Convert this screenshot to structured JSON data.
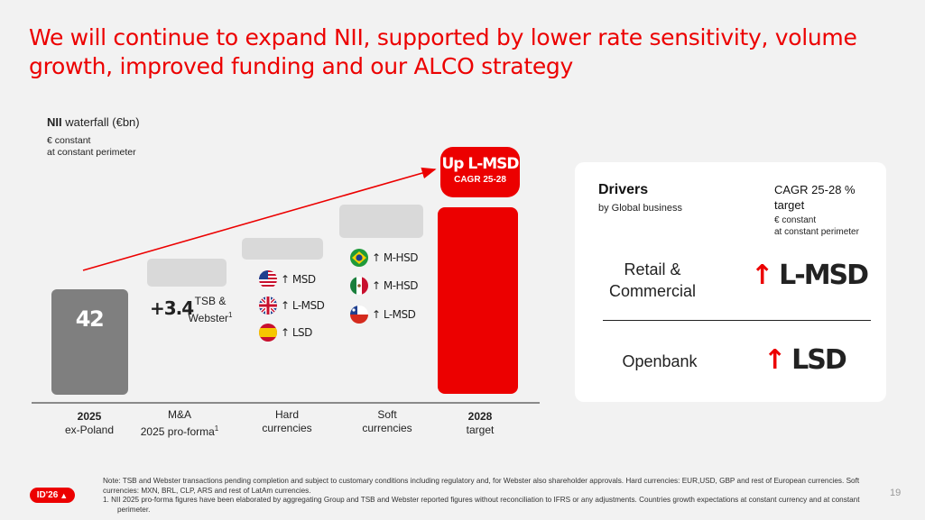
{
  "slide": {
    "title": "We will continue to expand NII, supported by lower rate sensitivity, volume growth, improved funding and our ALCO strategy",
    "page_number": "19"
  },
  "chart_data": {
    "type": "waterfall",
    "title_bold": "NII",
    "title_rest": " waterfall (€bn)",
    "subtitle_line1": "€ constant",
    "subtitle_line2": "at constant perimeter",
    "categories": [
      {
        "line1": "2025",
        "line2": "ex-Poland",
        "bold": true,
        "sup": ""
      },
      {
        "line1": "M&A",
        "line2": "2025 pro-forma",
        "bold": false,
        "sup": "1"
      },
      {
        "line1": "Hard",
        "line2": "currencies",
        "bold": false,
        "sup": ""
      },
      {
        "line1": "Soft",
        "line2": "currencies",
        "bold": false,
        "sup": ""
      },
      {
        "line1": "2028",
        "line2": "target",
        "bold": true,
        "sup": ""
      }
    ],
    "values": [
      42,
      3.4,
      null,
      null,
      null
    ],
    "start_label": "42",
    "ma_value_label": "+3.4",
    "ma_note_line1": "TSB &",
    "ma_note_line2": "Webster",
    "ma_note_sup": "1",
    "hard_currencies": [
      {
        "flag": "usa-flag",
        "label": "↑ MSD"
      },
      {
        "flag": "uk-flag",
        "label": "↑ L-MSD"
      },
      {
        "flag": "spain-flag",
        "label": "↑ LSD"
      }
    ],
    "soft_currencies": [
      {
        "flag": "brazil-flag",
        "label": "↑ M-HSD"
      },
      {
        "flag": "mexico-flag",
        "label": "↑ M-HSD"
      },
      {
        "flag": "chile-flag",
        "label": "↑ L-MSD"
      }
    ],
    "target_badge_main": "Up L-MSD",
    "target_badge_sub": "CAGR 25-28",
    "colors": {
      "start_bar": "#7f7f7f",
      "target_bar": "#ec0000",
      "placeholder": "#d9d9d9",
      "trend_arrow": "#ec0000"
    }
  },
  "drivers": {
    "title": "Drivers",
    "subtitle": "by Global business",
    "cagr_header": "CAGR 25-28 % target",
    "cagr_note_line1": "€ constant",
    "cagr_note_line2": "at constant perimeter",
    "rows": [
      {
        "name": "Retail & Commercial",
        "arrow": "↑",
        "value": "L-MSD"
      },
      {
        "name": "Openbank",
        "arrow": "↑",
        "value": "LSD"
      }
    ]
  },
  "footer": {
    "logo_text": "ID'26",
    "note": "Note: TSB and Webster transactions pending completion and subject to customary conditions including regulatory and, for Webster also shareholder approvals. Hard currencies: EUR,USD, GBP and rest of European currencies. Soft currencies: MXN, BRL, CLP, ARS and rest of LatAm currencies.",
    "footnote1": "1.   NII 2025 pro-forma figures have been elaborated by aggregating Group and TSB and Webster reported figures without reconciliation to IFRS or any adjustments. Countries growth expectations at constant currency and at constant perimeter."
  }
}
